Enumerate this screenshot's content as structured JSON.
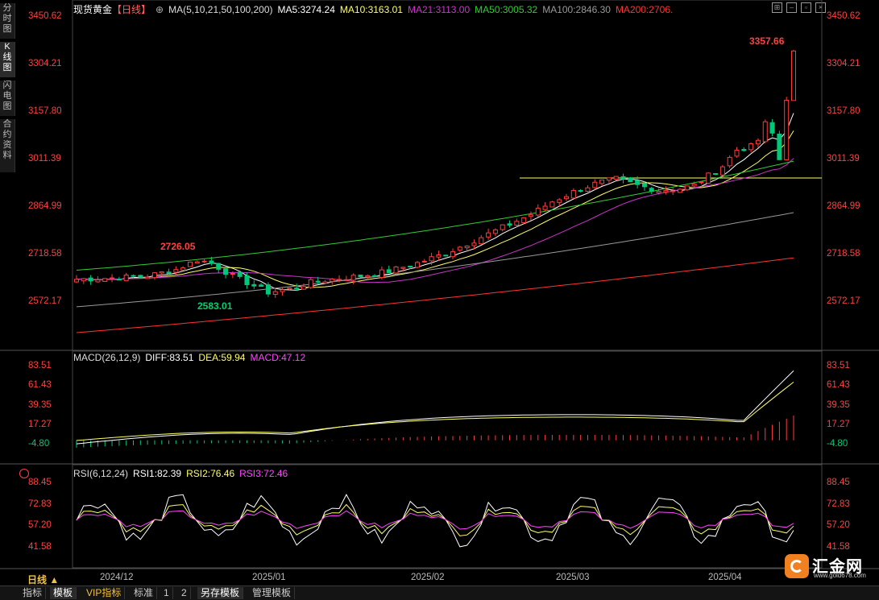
{
  "sidebar": {
    "tabs": [
      {
        "label": "分时图"
      },
      {
        "label": "K线图",
        "active": true
      },
      {
        "label": "闪电图"
      },
      {
        "label": "合约资料"
      }
    ]
  },
  "header": {
    "instrument": "现货黄金",
    "period": "【日线】",
    "ma_params": "MA(5,10,21,50,100,200)",
    "ma5": "MA5:3274.24",
    "ma10": "MA10:3163.01",
    "ma21": "MA21:3113.00",
    "ma50": "MA50:3005.32",
    "ma100": "MA100:2846.30",
    "ma200": "MA200:2706."
  },
  "price_axis": {
    "labels": [
      "3450.62",
      "3304.21",
      "3157.80",
      "3011.39",
      "2864.99",
      "2718.58",
      "2572.17"
    ]
  },
  "annotations": {
    "high": "3357.66",
    "high2": "2726.05",
    "low": "2583.01"
  },
  "macd": {
    "params": "MACD(26,12,9)",
    "diff": "DIFF:83.51",
    "dea": "DEA:59.94",
    "macd": "MACD:47.12",
    "labels": [
      "83.51",
      "61.43",
      "39.35",
      "17.27",
      "-4.80"
    ]
  },
  "rsi": {
    "params": "RSI(6,12,24)",
    "rsi1": "RSI1:82.39",
    "rsi2": "RSI2:76.46",
    "rsi3": "RSI3:72.46",
    "labels": [
      "88.45",
      "72.83",
      "57.20",
      "41.58"
    ]
  },
  "xaxis": {
    "period_label": "日线 ▲",
    "dates": [
      "2024/12",
      "2025/01",
      "2025/02",
      "2025/03",
      "2025/04"
    ]
  },
  "toolbar": {
    "buttons": [
      {
        "label": "指标"
      },
      {
        "label": "模板",
        "selected": true
      },
      {
        "label": "VIP指标"
      },
      {
        "label": "标准"
      },
      {
        "label": "1"
      },
      {
        "label": "2"
      },
      {
        "label": "另存模板"
      },
      {
        "label": "管理模板"
      }
    ]
  },
  "logo": {
    "name": "汇金网",
    "url": "www.gold678.com"
  },
  "colors": {
    "up": "#ff3b3b",
    "down": "#00c878",
    "ma5": "#ffffff",
    "ma10": "#ffff66",
    "ma21": "#cc33cc",
    "ma50": "#33cc33",
    "ma100": "#999999",
    "ma200": "#ff3333"
  }
}
